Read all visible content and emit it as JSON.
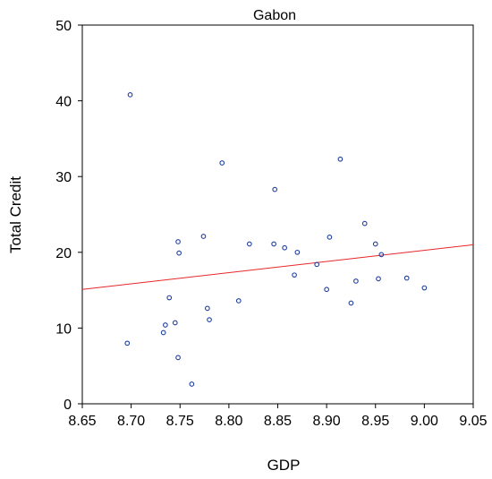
{
  "chart_data": {
    "type": "scatter",
    "title": "Gabon",
    "xlabel": "GDP",
    "ylabel": "Total Credit",
    "xlim": [
      8.65,
      9.05
    ],
    "ylim": [
      0,
      50
    ],
    "xticks": [
      "8.65",
      "8.70",
      "8.75",
      "8.80",
      "8.85",
      "8.90",
      "8.95",
      "9.00",
      "9.05"
    ],
    "yticks": [
      "0",
      "10",
      "20",
      "30",
      "40",
      "50"
    ],
    "grid": false,
    "colors": {
      "points": "#1f3f9f",
      "fit_line": "#e8262a",
      "frame": "#000000"
    },
    "series": [
      {
        "points": [
          {
            "x": 8.699,
            "y": 40.8
          },
          {
            "x": 8.696,
            "y": 8.0
          },
          {
            "x": 8.733,
            "y": 9.4
          },
          {
            "x": 8.735,
            "y": 10.4
          },
          {
            "x": 8.739,
            "y": 14.0
          },
          {
            "x": 8.745,
            "y": 10.7
          },
          {
            "x": 8.748,
            "y": 21.4
          },
          {
            "x": 8.749,
            "y": 19.9
          },
          {
            "x": 8.748,
            "y": 6.1
          },
          {
            "x": 8.762,
            "y": 2.6
          },
          {
            "x": 8.774,
            "y": 22.1
          },
          {
            "x": 8.778,
            "y": 12.6
          },
          {
            "x": 8.78,
            "y": 11.1
          },
          {
            "x": 8.793,
            "y": 31.8
          },
          {
            "x": 8.81,
            "y": 13.6
          },
          {
            "x": 8.821,
            "y": 21.1
          },
          {
            "x": 8.846,
            "y": 21.1
          },
          {
            "x": 8.847,
            "y": 28.3
          },
          {
            "x": 8.857,
            "y": 20.6
          },
          {
            "x": 8.867,
            "y": 17.0
          },
          {
            "x": 8.87,
            "y": 20.0
          },
          {
            "x": 8.89,
            "y": 18.4
          },
          {
            "x": 8.9,
            "y": 15.1
          },
          {
            "x": 8.903,
            "y": 22.0
          },
          {
            "x": 8.914,
            "y": 32.3
          },
          {
            "x": 8.925,
            "y": 13.3
          },
          {
            "x": 8.93,
            "y": 16.2
          },
          {
            "x": 8.939,
            "y": 23.8
          },
          {
            "x": 8.95,
            "y": 21.1
          },
          {
            "x": 8.953,
            "y": 16.5
          },
          {
            "x": 8.956,
            "y": 19.7
          },
          {
            "x": 8.982,
            "y": 16.6
          },
          {
            "x": 9.0,
            "y": 15.3
          }
        ]
      }
    ],
    "fit_line": {
      "x": [
        8.65,
        9.05
      ],
      "y": [
        15.1,
        21.0
      ]
    }
  }
}
